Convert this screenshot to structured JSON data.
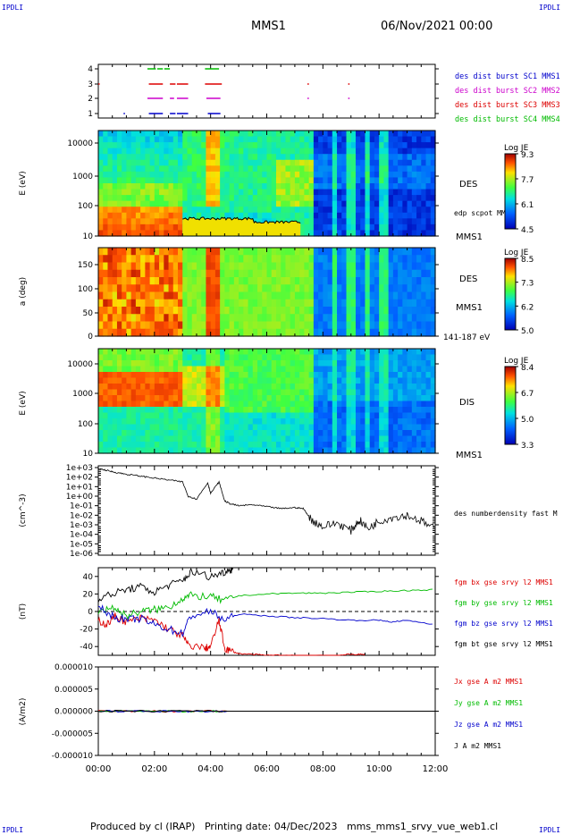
{
  "page": {
    "corner_left": "IPDLI",
    "corner_right": "IPDLI",
    "mission": "MMS1",
    "date": "06/Nov/2021 00:00",
    "footer": "Produced by cl (IRAP)   Printing date: 04/Dec/2023   mms_mms1_srvy_vue_web1.cl"
  },
  "colors": {
    "mms1": "#0000cc",
    "mms2": "#cc00cc",
    "mms3": "#dd0000",
    "mms4": "#00bb00",
    "bx": "#dd0000",
    "by": "#00bb00",
    "bz": "#0000cc",
    "bt": "#000000"
  },
  "chart_data": [
    {
      "type": "scatter",
      "panel": "burst-availability",
      "y_ticks": [
        "4",
        "3",
        "2",
        "1"
      ],
      "legend": [
        {
          "label": "des dist burst SC1 MMS1",
          "color": "#0000cc"
        },
        {
          "label": "des dist burst SC2 MMS2",
          "color": "#cc00cc"
        },
        {
          "label": "des dist burst SC3 MMS3",
          "color": "#dd0000"
        },
        {
          "label": "des dist burst SC4 MMS4",
          "color": "#00bb00"
        }
      ],
      "segments_hours": {
        "4": [
          [
            1.75,
            2.05
          ],
          [
            2.1,
            2.3
          ],
          [
            2.35,
            2.55
          ],
          [
            3.8,
            4.3
          ]
        ],
        "3": [
          [
            0.0,
            0.05
          ],
          [
            1.8,
            2.3
          ],
          [
            2.55,
            2.75
          ],
          [
            2.8,
            3.2
          ],
          [
            3.8,
            4.4
          ],
          [
            7.45,
            7.5
          ],
          [
            8.9,
            8.95
          ]
        ],
        "2": [
          [
            1.75,
            2.3
          ],
          [
            2.55,
            2.7
          ],
          [
            2.8,
            3.2
          ],
          [
            3.85,
            4.35
          ],
          [
            7.45,
            7.5
          ],
          [
            8.9,
            8.95
          ]
        ],
        "1": [
          [
            0.9,
            0.95
          ],
          [
            1.8,
            2.3
          ],
          [
            2.55,
            2.75
          ],
          [
            2.8,
            3.2
          ],
          [
            3.9,
            4.35
          ]
        ]
      }
    },
    {
      "type": "heatmap",
      "panel": "des-energy-spectrogram",
      "ylabel": "E (eV)",
      "y_ticks": [
        "10000",
        "1000",
        "100",
        "10"
      ],
      "label": "DES",
      "sublabel": "MMS1",
      "overlay_label": "edp scpot MMS1",
      "colorbar": {
        "title": "Log JE",
        "ticks": [
          "9.3",
          "7.7",
          "6.1",
          "4.5"
        ]
      }
    },
    {
      "type": "heatmap",
      "panel": "des-pitch-angle",
      "ylabel": "a (deg)",
      "y_ticks": [
        "150",
        "100",
        "50",
        "0"
      ],
      "label": "DES",
      "sublabel": "MMS1",
      "energy_label": "141-187 eV",
      "colorbar": {
        "title": "Log JE",
        "ticks": [
          "8.5",
          "7.3",
          "6.2",
          "5.0"
        ]
      }
    },
    {
      "type": "heatmap",
      "panel": "dis-energy-spectrogram",
      "ylabel": "E (eV)",
      "y_ticks": [
        "10000",
        "1000",
        "100",
        "10"
      ],
      "label": "DIS",
      "sublabel": "MMS1",
      "colorbar": {
        "title": "Log JE",
        "ticks": [
          "8.4",
          "6.7",
          "5.0",
          "3.3"
        ]
      }
    },
    {
      "type": "line",
      "panel": "electron-density",
      "ylabel": "(cm^-3)",
      "y_scale": "log",
      "y_ticks": [
        "1e+03",
        "1e+02",
        "1e+01",
        "1e+00",
        "1e-01",
        "1e-02",
        "1e-03",
        "1e-04",
        "1e-05",
        "1e-06"
      ],
      "series": [
        {
          "name": "des numberdensity fast M",
          "x_hours": [
            0.0,
            0.3,
            0.6,
            1.0,
            1.5,
            2.0,
            2.5,
            3.0,
            3.2,
            3.5,
            3.9,
            4.0,
            4.3,
            4.5,
            4.7,
            5.0,
            5.5,
            6.0,
            6.5,
            7.0,
            7.3,
            7.6,
            8.0,
            8.5,
            9.0,
            9.3,
            9.6,
            10.0,
            10.5,
            11.0,
            11.5,
            12.0
          ],
          "log10_values": [
            2.9,
            2.7,
            2.5,
            2.3,
            2.1,
            1.9,
            1.7,
            1.5,
            0.0,
            -0.3,
            1.4,
            0.3,
            1.5,
            -0.5,
            -0.8,
            -1.0,
            -0.9,
            -1.1,
            -1.3,
            -1.2,
            -1.3,
            -2.5,
            -3.2,
            -2.8,
            -3.6,
            -2.5,
            -3.4,
            -2.6,
            -2.2,
            -2.0,
            -2.6,
            -3.5
          ]
        }
      ]
    },
    {
      "type": "line",
      "panel": "magnetic-field",
      "ylabel": "(nT)",
      "ylim": [
        -50,
        50
      ],
      "y_ticks": [
        "40",
        "20",
        "0",
        "-20",
        "-40"
      ],
      "series": [
        {
          "name": "fgm bx gse srvy l2 MMS1",
          "color": "#dd0000",
          "x_hours": [
            0.0,
            0.3,
            0.6,
            1.0,
            1.5,
            2.0,
            2.5,
            3.0,
            3.2,
            3.8,
            4.0,
            4.3,
            4.5,
            4.7,
            5.0,
            5.5,
            6.0,
            6.5,
            7.0,
            8.5,
            9.0,
            9.3,
            9.5
          ],
          "values": [
            -10,
            -15,
            -5,
            -12,
            -8,
            -10,
            -20,
            -28,
            -38,
            -42,
            -40,
            -10,
            -42,
            -45,
            -48,
            -49,
            -50,
            -50,
            -50,
            -50,
            -49,
            -49,
            -49
          ]
        },
        {
          "name": "fgm by gse srvy l2 MMS1",
          "color": "#00bb00",
          "x_hours": [
            0.0,
            0.5,
            1.0,
            1.5,
            2.0,
            2.5,
            3.0,
            3.3,
            4.0,
            4.5,
            5.0,
            6.0,
            7.0,
            8.0,
            9.0,
            10.0,
            11.0,
            12.0
          ],
          "values": [
            0,
            5,
            -5,
            0,
            2,
            5,
            15,
            18,
            17,
            12,
            18,
            20,
            21,
            21,
            22,
            23,
            24,
            25
          ]
        },
        {
          "name": "fgm bz gse srvy l2 MMS1",
          "color": "#0000cc",
          "x_hours": [
            0.0,
            0.5,
            1.0,
            1.5,
            2.0,
            2.5,
            3.0,
            3.3,
            4.0,
            4.5,
            5.0,
            6.0,
            7.0,
            8.0,
            9.0,
            10.0,
            10.5,
            11.0,
            12.0
          ],
          "values": [
            5,
            -5,
            -10,
            -8,
            -15,
            -20,
            -25,
            -5,
            0,
            -10,
            -3,
            -5,
            -7,
            -8,
            -10,
            -10,
            -12,
            -10,
            -15
          ]
        },
        {
          "name": "fgm bt gse srvy l2 MMS1",
          "color": "#000000",
          "x_hours": [
            0.0,
            0.5,
            1.0,
            1.5,
            2.0,
            2.5,
            3.0,
            3.3,
            4.0,
            4.4,
            4.7,
            4.8
          ],
          "values": [
            15,
            20,
            25,
            28,
            22,
            30,
            35,
            45,
            40,
            44,
            48,
            48
          ]
        }
      ]
    },
    {
      "type": "line",
      "panel": "current-density",
      "ylabel": "(A/m2)",
      "y_ticks": [
        "0.000010",
        "0.000005",
        "0.000000",
        "-0.000005",
        "-0.000010"
      ],
      "series": [
        {
          "name": "Jx gse A m2 MMS1",
          "color": "#dd0000",
          "x_hours": [
            0.0,
            12.0
          ],
          "values": [
            0.0,
            0.0
          ]
        },
        {
          "name": "Jy gse A m2 MMS1",
          "color": "#00bb00",
          "x_hours": [
            0.0,
            12.0
          ],
          "values": [
            0.0,
            0.0
          ]
        },
        {
          "name": "Jz gse A m2 MMS1",
          "color": "#0000cc",
          "x_hours": [
            0.0,
            12.0
          ],
          "values": [
            0.0,
            0.0
          ]
        },
        {
          "name": "J A m2 MMS1",
          "color": "#000000",
          "x_hours": [
            0.0,
            12.0
          ],
          "values": [
            0.0,
            0.0
          ]
        }
      ]
    }
  ],
  "x_axis": {
    "ticks": [
      "00:00",
      "02:00",
      "04:00",
      "06:00",
      "08:00",
      "10:00",
      "12:00"
    ]
  }
}
